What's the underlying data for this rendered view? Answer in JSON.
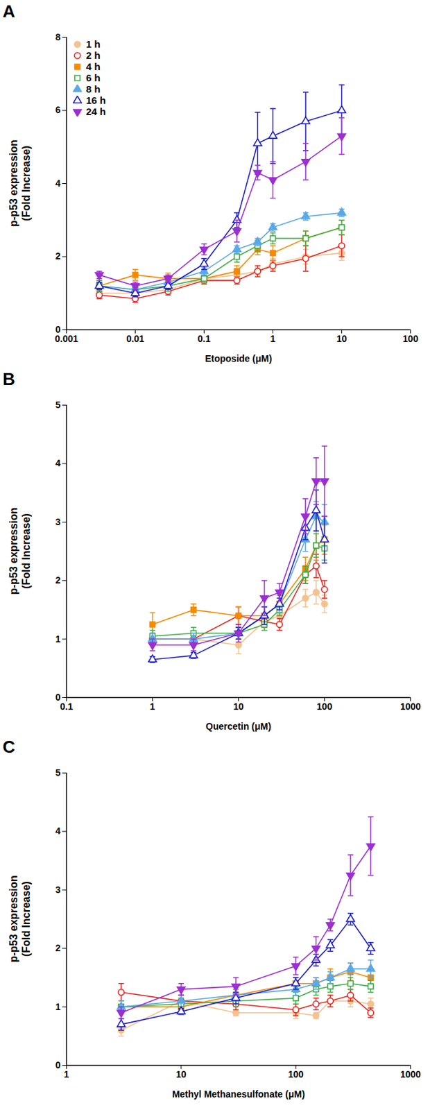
{
  "chart_data": [
    {
      "type": "line",
      "title": "A",
      "xlabel": "Etoposide (μM)",
      "ylabel": "p-p53 expression\n(Fold Increase)",
      "log": "x",
      "legend": "upper left",
      "xlim": [
        0.001,
        100
      ],
      "xticks": [
        0.001,
        0.01,
        0.1,
        1,
        10,
        100
      ],
      "ylim": [
        0,
        8
      ],
      "yticks": [
        0,
        2,
        4,
        6,
        8
      ],
      "x": [
        0.003,
        0.01,
        0.03,
        0.1,
        0.3,
        0.6,
        1,
        3,
        10
      ],
      "series": [
        {
          "name": "1 h",
          "color": "#f5c28f",
          "marker": "circle",
          "values": [
            1.0,
            1.0,
            1.1,
            1.4,
            1.5,
            1.6,
            1.8,
            2.0,
            2.1
          ],
          "errors": [
            0.1,
            0.1,
            0.1,
            0.1,
            0.1,
            0.1,
            0.15,
            0.2,
            0.2
          ]
        },
        {
          "name": "2 h",
          "color": "#e8251f",
          "marker": "circle-open",
          "values": [
            0.95,
            0.85,
            1.05,
            1.35,
            1.35,
            1.6,
            1.75,
            1.95,
            2.3
          ],
          "errors": [
            0.1,
            0.1,
            0.1,
            0.1,
            0.1,
            0.15,
            0.15,
            0.35,
            0.3
          ]
        },
        {
          "name": "4 h",
          "color": "#f58a00",
          "marker": "square",
          "values": [
            1.2,
            1.5,
            1.4,
            1.4,
            1.6,
            2.2,
            2.1,
            2.5,
            2.8
          ],
          "errors": [
            0.15,
            0.15,
            0.15,
            0.15,
            0.15,
            0.15,
            0.2,
            0.2,
            0.2
          ]
        },
        {
          "name": "6 h",
          "color": "#3fae49",
          "marker": "square-open",
          "values": [
            1.2,
            1.1,
            1.2,
            1.4,
            2.0,
            2.3,
            2.5,
            2.5,
            2.8
          ],
          "errors": [
            0.15,
            0.15,
            0.15,
            0.15,
            0.15,
            0.15,
            0.15,
            0.2,
            0.2
          ]
        },
        {
          "name": "8 h",
          "color": "#5aa9e6",
          "marker": "triangle",
          "values": [
            1.2,
            1.1,
            1.3,
            1.6,
            2.2,
            2.4,
            2.8,
            3.1,
            3.2
          ],
          "errors": [
            0.1,
            0.1,
            0.1,
            0.1,
            0.1,
            0.1,
            0.1,
            0.1,
            0.1
          ]
        },
        {
          "name": "16 h",
          "color": "#1c1cc8",
          "marker": "triangle-open",
          "values": [
            1.2,
            1.0,
            1.2,
            1.8,
            3.0,
            5.1,
            5.3,
            5.7,
            6.0
          ],
          "errors": [
            0.1,
            0.1,
            0.1,
            0.15,
            0.2,
            0.85,
            0.75,
            0.8,
            0.7
          ]
        },
        {
          "name": "24 h",
          "color": "#9b2fd0",
          "marker": "triangle-down",
          "values": [
            1.5,
            1.2,
            1.4,
            2.2,
            2.7,
            4.3,
            4.1,
            4.6,
            5.3
          ],
          "errors": [
            0.1,
            0.1,
            0.1,
            0.15,
            0.3,
            0.2,
            0.5,
            0.5,
            0.5
          ]
        }
      ]
    },
    {
      "type": "line",
      "title": "B",
      "xlabel": "Quercetin (μM)",
      "ylabel": "p-p53 expression\n(Fold Increase)",
      "log": "x",
      "xlim": [
        0.1,
        1000
      ],
      "xticks": [
        0.1,
        1,
        10,
        100,
        1000
      ],
      "ylim": [
        0,
        5
      ],
      "yticks": [
        0,
        1,
        2,
        3,
        4,
        5
      ],
      "x": [
        1,
        3,
        10,
        20,
        30,
        60,
        80,
        100
      ],
      "series": [
        {
          "name": "1 h",
          "color": "#f5c28f",
          "marker": "circle",
          "values": [
            1.0,
            1.0,
            0.9,
            1.3,
            1.4,
            1.7,
            1.8,
            1.6
          ],
          "errors": [
            0.1,
            0.1,
            0.15,
            0.1,
            0.1,
            0.15,
            0.2,
            0.15
          ]
        },
        {
          "name": "2 h",
          "color": "#e8251f",
          "marker": "circle-open",
          "values": [
            1.0,
            1.0,
            1.4,
            1.3,
            1.25,
            2.1,
            2.25,
            1.85
          ],
          "errors": [
            0.1,
            0.1,
            0.15,
            0.1,
            0.1,
            0.15,
            0.2,
            0.15
          ]
        },
        {
          "name": "4 h",
          "color": "#f58a00",
          "marker": "square",
          "values": [
            1.25,
            1.5,
            1.4,
            1.4,
            1.6,
            2.2,
            2.6,
            2.7
          ],
          "errors": [
            0.2,
            0.1,
            0.15,
            0.15,
            0.15,
            0.2,
            0.25,
            0.25
          ]
        },
        {
          "name": "6 h",
          "color": "#3fae49",
          "marker": "square-open",
          "values": [
            1.05,
            1.1,
            1.1,
            1.25,
            1.5,
            2.1,
            2.6,
            2.55
          ],
          "errors": [
            0.1,
            0.1,
            0.1,
            0.1,
            0.1,
            0.15,
            0.2,
            0.2
          ]
        },
        {
          "name": "8 h",
          "color": "#5aa9e6",
          "marker": "triangle",
          "values": [
            1.0,
            1.0,
            1.1,
            1.4,
            1.6,
            2.7,
            3.1,
            3.0
          ],
          "errors": [
            0.1,
            0.1,
            0.1,
            0.15,
            0.15,
            0.2,
            0.25,
            0.3
          ]
        },
        {
          "name": "16 h",
          "color": "#1c1cc8",
          "marker": "triangle-open",
          "values": [
            0.65,
            0.72,
            1.1,
            1.4,
            1.6,
            2.9,
            3.2,
            2.7
          ],
          "errors": [
            0.05,
            0.05,
            0.1,
            0.15,
            0.1,
            0.2,
            0.35,
            0.4
          ]
        },
        {
          "name": "24 h",
          "color": "#9b2fd0",
          "marker": "triangle-down",
          "values": [
            0.9,
            0.9,
            1.1,
            1.7,
            1.8,
            3.1,
            3.7,
            3.7
          ],
          "errors": [
            0.1,
            0.1,
            0.15,
            0.3,
            0.15,
            0.3,
            0.4,
            0.6
          ]
        }
      ]
    },
    {
      "type": "line",
      "title": "C",
      "xlabel": "Methyl Methanesulfonate (μM)",
      "ylabel": "p-p53 expression\n(Fold Increase)",
      "log": "x",
      "xlim": [
        1,
        1000
      ],
      "xticks": [
        1,
        10,
        100,
        1000
      ],
      "ylim": [
        0,
        5
      ],
      "yticks": [
        0,
        1,
        2,
        3,
        4,
        5
      ],
      "x": [
        3,
        10,
        30,
        100,
        150,
        200,
        300,
        450
      ],
      "series": [
        {
          "name": "1 h",
          "color": "#f5c28f",
          "marker": "circle",
          "values": [
            0.6,
            1.1,
            0.9,
            0.9,
            0.85,
            1.1,
            1.1,
            1.05
          ],
          "errors": [
            0.1,
            0.1,
            0.05,
            0.1,
            0.05,
            0.1,
            0.1,
            0.1
          ]
        },
        {
          "name": "2 h",
          "color": "#e8251f",
          "marker": "circle-open",
          "values": [
            1.25,
            1.1,
            1.05,
            0.95,
            1.05,
            1.1,
            1.2,
            0.9
          ],
          "errors": [
            0.15,
            0.1,
            0.1,
            0.1,
            0.1,
            0.1,
            0.1,
            0.08
          ]
        },
        {
          "name": "4 h",
          "color": "#f58a00",
          "marker": "square",
          "values": [
            1.0,
            1.0,
            1.2,
            1.4,
            1.4,
            1.5,
            1.6,
            1.5
          ],
          "errors": [
            0.1,
            0.1,
            0.1,
            0.1,
            0.1,
            0.15,
            0.15,
            0.15
          ]
        },
        {
          "name": "6 h",
          "color": "#3fae49",
          "marker": "square-open",
          "values": [
            1.0,
            1.05,
            1.1,
            1.15,
            1.3,
            1.35,
            1.4,
            1.35
          ],
          "errors": [
            0.1,
            0.1,
            0.1,
            0.1,
            0.1,
            0.1,
            0.1,
            0.1
          ]
        },
        {
          "name": "8 h",
          "color": "#5aa9e6",
          "marker": "triangle",
          "values": [
            1.0,
            1.1,
            1.2,
            1.3,
            1.4,
            1.5,
            1.65,
            1.65
          ],
          "errors": [
            0.1,
            0.1,
            0.1,
            0.1,
            0.1,
            0.1,
            0.1,
            0.15
          ]
        },
        {
          "name": "16 h",
          "color": "#1c1cc8",
          "marker": "triangle-open",
          "values": [
            0.7,
            0.92,
            1.15,
            1.4,
            1.8,
            2.05,
            2.5,
            2.0
          ],
          "errors": [
            0.1,
            0.05,
            0.1,
            0.1,
            0.1,
            0.1,
            0.1,
            0.1
          ]
        },
        {
          "name": "24 h",
          "color": "#9b2fd0",
          "marker": "triangle-down",
          "values": [
            0.9,
            1.3,
            1.35,
            1.7,
            2.0,
            2.4,
            3.25,
            3.75
          ],
          "errors": [
            0.1,
            0.1,
            0.15,
            0.15,
            0.2,
            0.1,
            0.35,
            0.5
          ]
        }
      ]
    }
  ]
}
